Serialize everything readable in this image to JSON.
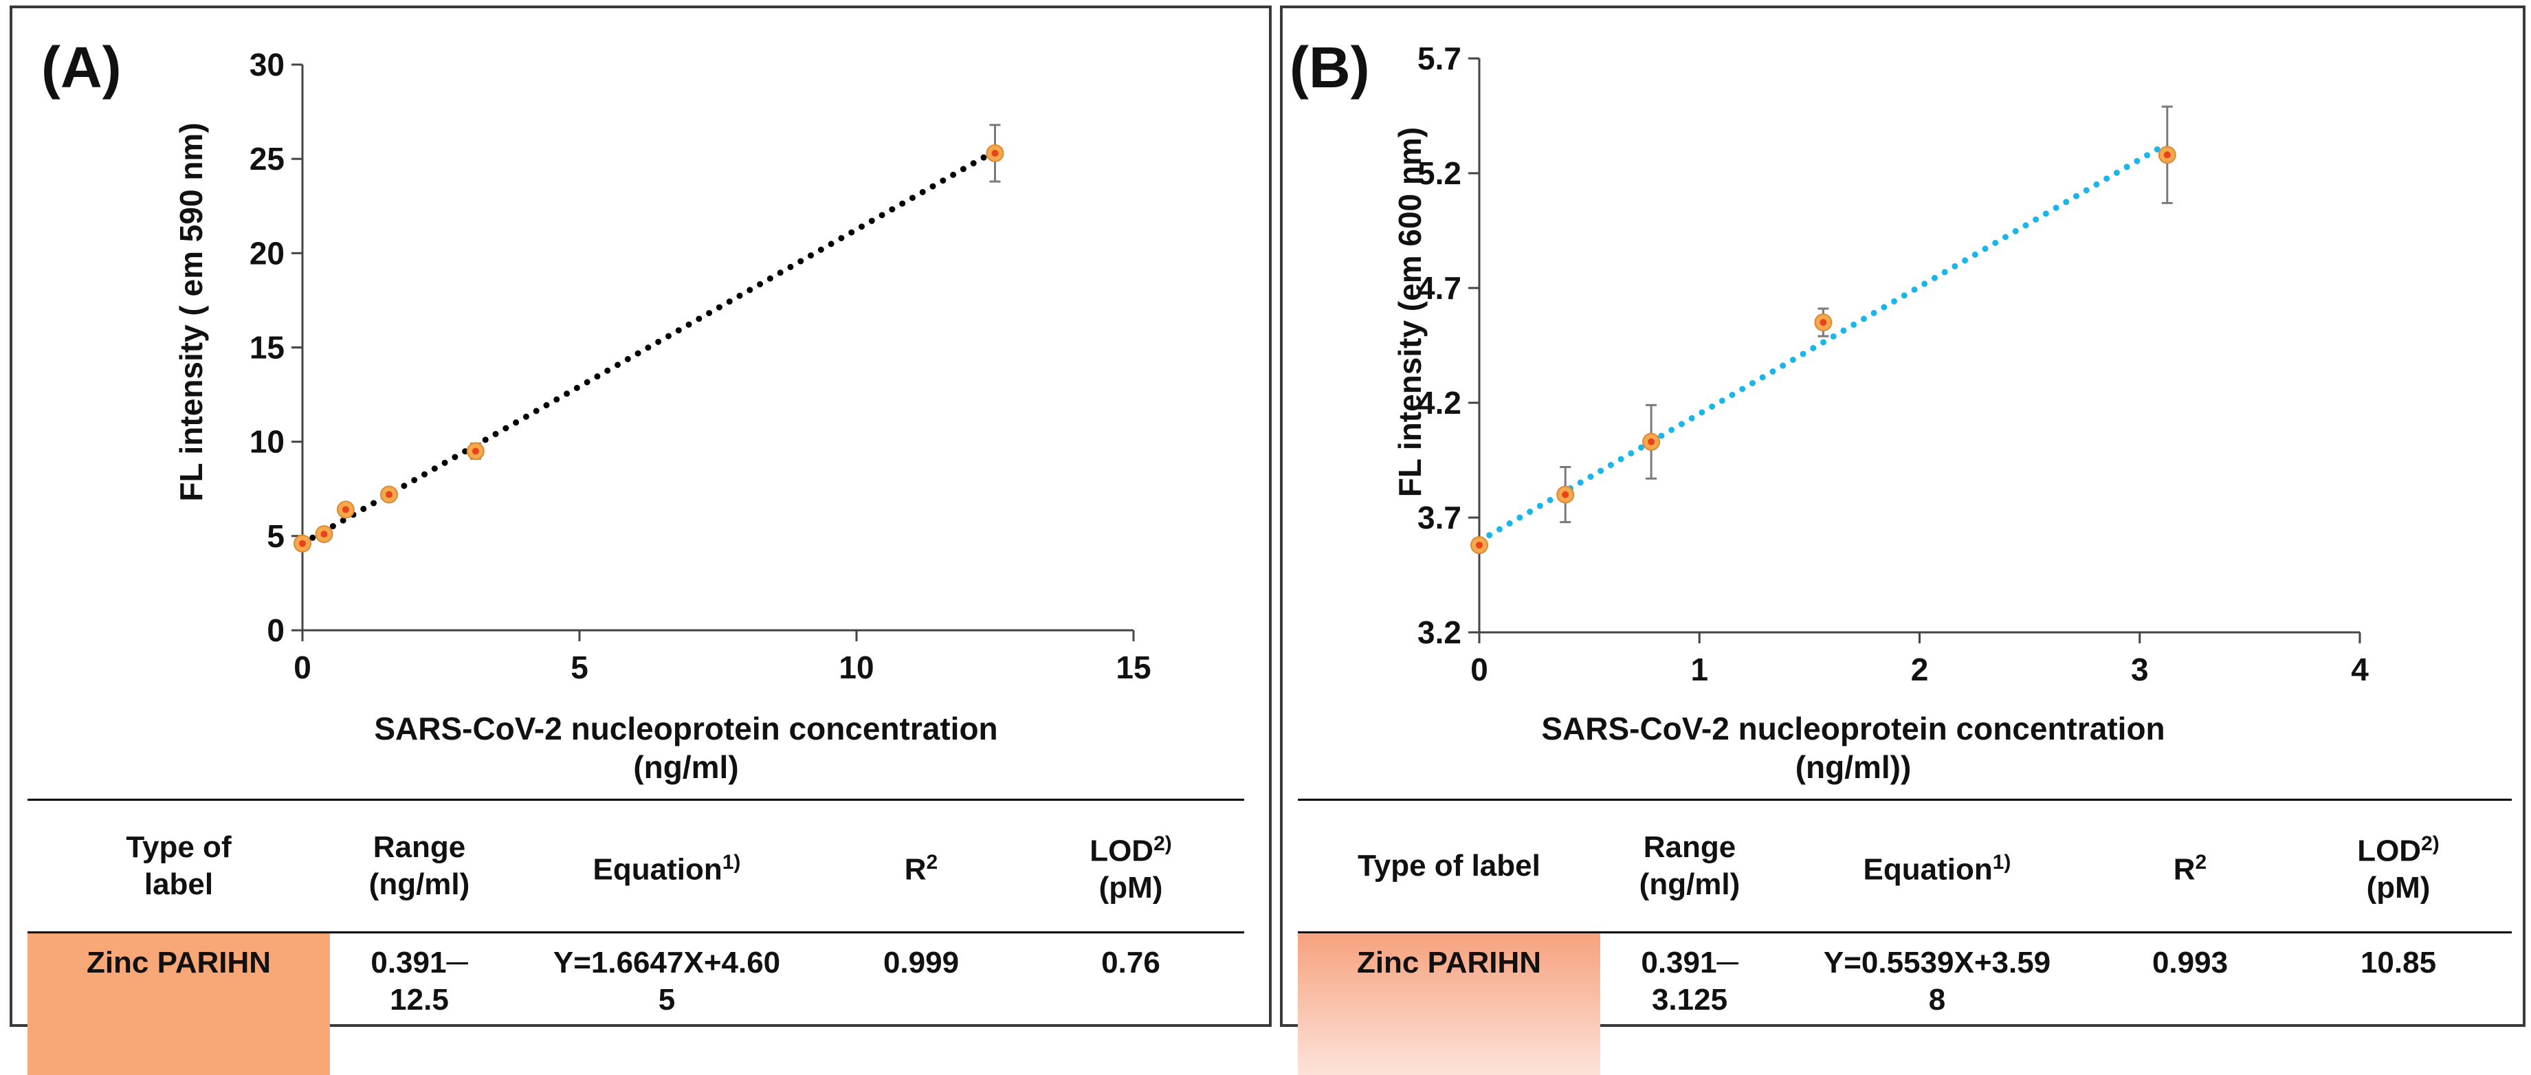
{
  "colors": {
    "marker_fill": "#f7a84a",
    "marker_center": "#e8431b",
    "fit_a": "#000000",
    "fit_b": "#1ab6ea",
    "errorbar": "#7a7a7a",
    "label_a_bg": "#f7a876",
    "label_b_bg": "#f6a27e"
  },
  "chart_data": [
    {
      "type": "scatter",
      "panel_label": "(A)",
      "xlabel": "SARS-CoV-2 nucleoprotein concentration (ng/ml)",
      "xlabel_lines": [
        "SARS-CoV-2 nucleoprotein concentration",
        "(ng/ml)"
      ],
      "ylabel": "FL intensity ( em 590 nm)",
      "xlim": [
        0,
        15
      ],
      "ylim": [
        0,
        30
      ],
      "xticks": [
        0,
        5,
        10,
        15
      ],
      "yticks": [
        0,
        5,
        10,
        15,
        20,
        25,
        30
      ],
      "x": [
        0,
        0.391,
        0.781,
        1.5625,
        3.125,
        12.5
      ],
      "y": [
        4.6,
        5.1,
        6.4,
        7.2,
        9.5,
        25.3
      ],
      "yerr": [
        0.2,
        0.3,
        0.3,
        0.3,
        0.4,
        1.5
      ],
      "fit": {
        "slope": 1.6647,
        "intercept": 4.605,
        "style": "dotted",
        "x_range": [
          0,
          12.5
        ]
      },
      "table": {
        "headers": [
          "Type of label",
          "Range (ng/ml)",
          "Equation",
          "R",
          "LOD",
          "(pM)"
        ],
        "header_lines": {
          "type": [
            "Type of",
            "label"
          ],
          "range": [
            "Range",
            "(ng/ml)"
          ],
          "equation": "Equation",
          "equation_sup": "1)",
          "r2": "R",
          "r2_sup": "2",
          "lod": "LOD",
          "lod_sup": "2)",
          "lod_unit": "(pM)"
        },
        "row": {
          "label": "Zinc PARIHN",
          "range": [
            "0.391─",
            "12.5"
          ],
          "equation": [
            "Y=1.6647X+4.60",
            "5"
          ],
          "r2": "0.999",
          "lod": "0.76"
        }
      }
    },
    {
      "type": "scatter",
      "panel_label": "(B)",
      "xlabel": "SARS-CoV-2 nucleoprotein concentration (ng/ml))",
      "xlabel_lines": [
        "SARS-CoV-2 nucleoprotein concentration",
        "(ng/ml))"
      ],
      "ylabel": "FL intensity (em 600 nm)",
      "xlim": [
        0,
        4
      ],
      "ylim": [
        3.2,
        5.7
      ],
      "xticks": [
        0,
        1,
        2,
        3,
        4
      ],
      "yticks": [
        "3.2",
        "3.7",
        "4.2",
        "4.7",
        "5.2",
        "5.7"
      ],
      "x": [
        0,
        0.391,
        0.781,
        1.5625,
        3.125
      ],
      "y": [
        3.58,
        3.8,
        4.03,
        4.55,
        5.28
      ],
      "yerr": [
        0.02,
        0.12,
        0.16,
        0.06,
        0.21
      ],
      "fit": {
        "slope": 0.5539,
        "intercept": 3.598,
        "style": "dotted",
        "x_range": [
          0,
          3.125
        ]
      },
      "table": {
        "headers": [
          "Type of label",
          "Range (ng/ml)",
          "Equation",
          "R",
          "LOD",
          "(pM)"
        ],
        "header_lines": {
          "type": [
            "Type of label"
          ],
          "range": [
            "Range",
            "(ng/ml)"
          ],
          "equation": "Equation",
          "equation_sup": "1)",
          "r2": "R",
          "r2_sup": "2",
          "lod": "LOD",
          "lod_sup": "2)",
          "lod_unit": "(pM)"
        },
        "row": {
          "label": "Zinc PARIHN",
          "range": [
            "0.391─",
            "3.125"
          ],
          "equation": [
            "Y=0.5539X+3.59",
            "8"
          ],
          "r2": "0.993",
          "lod": "10.85"
        }
      }
    }
  ]
}
